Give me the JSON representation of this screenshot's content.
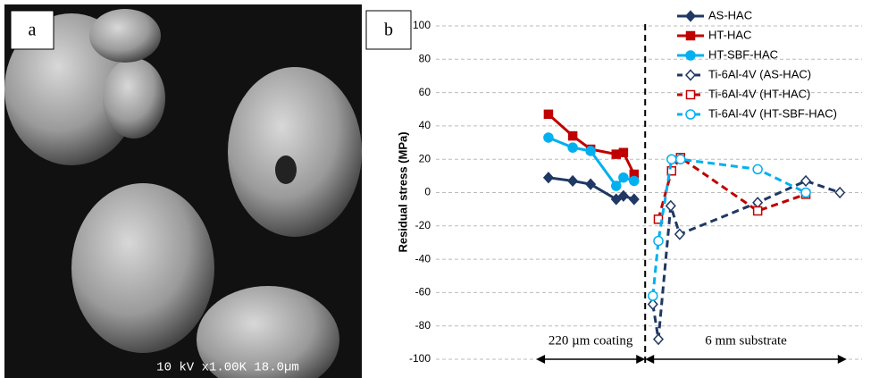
{
  "panel_a": {
    "label": "a",
    "scale_text": "10 kV x1.00K 18.0µm"
  },
  "chart_data": {
    "type": "line",
    "panel_label": "b",
    "y_label": "Residual stress (MPa)",
    "ylim": [
      -100,
      100
    ],
    "yticks": [
      -100,
      -80,
      -60,
      -40,
      -20,
      0,
      20,
      40,
      60,
      80,
      100
    ],
    "grid": true,
    "xlim": [
      0,
      100
    ],
    "divider_x": 49.1,
    "annotations": [
      {
        "text": "220 µm coating",
        "from": 23.5,
        "to": 49.1
      },
      {
        "text": "6 mm substrate",
        "from": 49.1,
        "to": 96.4
      }
    ],
    "legend": "top-right",
    "series": [
      {
        "name": "AS-HAC",
        "color": "#1f3864",
        "marker": "diamond",
        "dashed": false,
        "filled": true,
        "x": [
          26.4,
          32.1,
          36.3,
          42.3,
          44.0,
          46.5
        ],
        "values": [
          9,
          7,
          5,
          -4,
          -2,
          -4
        ]
      },
      {
        "name": "HT-HAC",
        "color": "#c00000",
        "marker": "square",
        "dashed": false,
        "filled": true,
        "x": [
          26.4,
          32.1,
          36.3,
          42.3,
          44.0,
          46.5
        ],
        "values": [
          47,
          34,
          26,
          23,
          24,
          11
        ]
      },
      {
        "name": "HT-SBF-HAC",
        "color": "#00b0f0",
        "marker": "circle",
        "dashed": false,
        "filled": true,
        "x": [
          26.4,
          32.1,
          36.3,
          42.3,
          44.0,
          46.5
        ],
        "values": [
          33,
          27,
          25,
          4,
          9,
          7
        ]
      },
      {
        "name": "Ti-6Al-4V (AS-HAC)",
        "color": "#1f3864",
        "marker": "diamond",
        "dashed": true,
        "filled": false,
        "x": [
          50.9,
          52.2,
          55.1,
          57.2,
          75.5,
          86.8,
          94.8
        ],
        "values": [
          -67,
          -88,
          -8,
          -25,
          -6,
          7,
          0
        ]
      },
      {
        "name": "Ti-6Al-4V (HT-HAC)",
        "color": "#c00000",
        "marker": "square",
        "dashed": true,
        "filled": false,
        "x": [
          52.2,
          55.3,
          57.4,
          75.5,
          86.8
        ],
        "values": [
          -16,
          13,
          21,
          -11,
          -1
        ]
      },
      {
        "name": "Ti-6Al-4V (HT-SBF-HAC)",
        "color": "#00b0f0",
        "marker": "circle",
        "dashed": true,
        "filled": false,
        "x": [
          50.9,
          52.2,
          55.3,
          57.4,
          75.5,
          86.8
        ],
        "values": [
          -62,
          -29,
          20,
          20,
          14,
          0
        ]
      }
    ]
  }
}
